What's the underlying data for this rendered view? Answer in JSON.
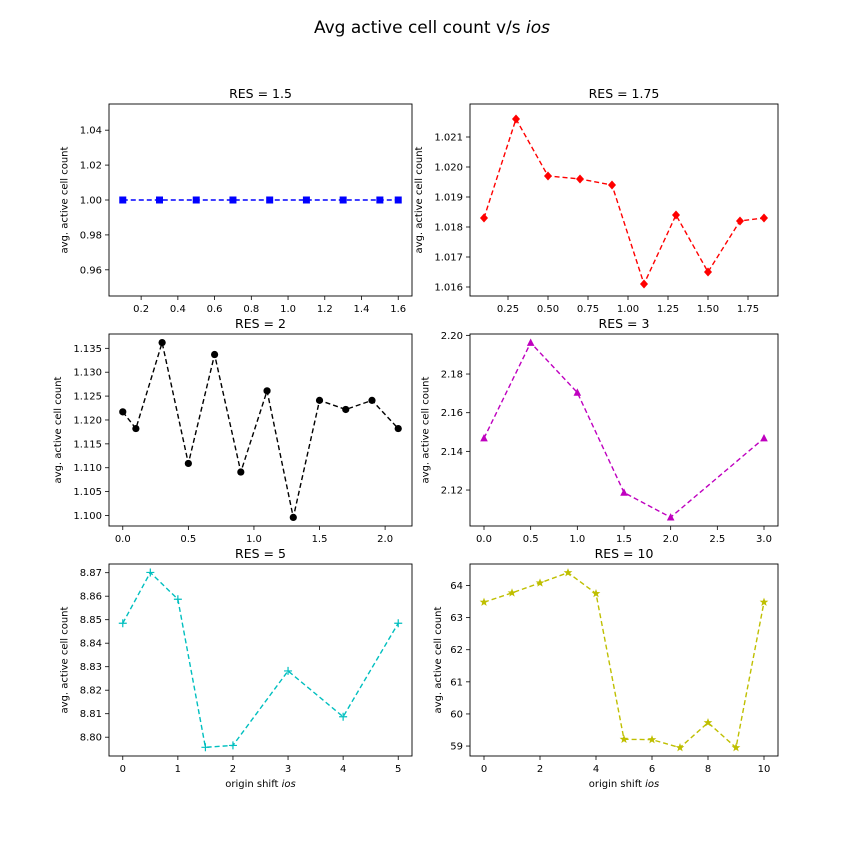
{
  "figure": {
    "title": "Avg active cell count v/s",
    "title_italic": "ios"
  },
  "chart_data": [
    {
      "type": "line",
      "title": "RES = 1.5",
      "ylabel": "avg. active cell count",
      "xlabel": "",
      "xlabel_italic": "",
      "color": "#0000ff",
      "marker": "square",
      "linestyle": "dashed",
      "x": [
        0.1,
        0.3,
        0.5,
        0.7,
        0.9,
        1.1,
        1.3,
        1.5,
        1.6
      ],
      "y": [
        1.0,
        1.0,
        1.0,
        1.0,
        1.0,
        1.0,
        1.0,
        1.0,
        1.0
      ],
      "xlim": [
        0.025,
        1.675
      ],
      "ylim": [
        0.945,
        1.055
      ],
      "xticks": [
        0.2,
        0.4,
        0.6,
        0.8,
        1.0,
        1.2,
        1.4,
        1.6
      ],
      "xtick_labels": [
        "0.2",
        "0.4",
        "0.6",
        "0.8",
        "1.0",
        "1.2",
        "1.4",
        "1.6"
      ],
      "yticks": [
        0.96,
        0.98,
        1.0,
        1.02,
        1.04
      ],
      "ytick_labels": [
        "0.96",
        "0.98",
        "1.00",
        "1.02",
        "1.04"
      ]
    },
    {
      "type": "line",
      "title": "RES = 1.75",
      "ylabel": "avg. active cell count",
      "xlabel": "",
      "xlabel_italic": "",
      "color": "#ff0000",
      "marker": "diamond",
      "linestyle": "dashed",
      "x": [
        0.1,
        0.3,
        0.5,
        0.7,
        0.9,
        1.1,
        1.3,
        1.5,
        1.7,
        1.85
      ],
      "y": [
        1.0183,
        1.0216,
        1.0197,
        1.0196,
        1.0194,
        1.0161,
        1.0184,
        1.0165,
        1.0182,
        1.0183
      ],
      "xlim": [
        0.0125,
        1.9375
      ],
      "ylim": [
        1.0157,
        1.0221
      ],
      "xticks": [
        0.25,
        0.5,
        0.75,
        1.0,
        1.25,
        1.5,
        1.75
      ],
      "xtick_labels": [
        "0.25",
        "0.50",
        "0.75",
        "1.00",
        "1.25",
        "1.50",
        "1.75"
      ],
      "yticks": [
        1.016,
        1.017,
        1.018,
        1.019,
        1.02,
        1.021
      ],
      "ytick_labels": [
        "1.016",
        "1.017",
        "1.018",
        "1.019",
        "1.020",
        "1.021"
      ]
    },
    {
      "type": "line",
      "title": "RES = 2",
      "ylabel": "avg. active cell count",
      "xlabel": "",
      "xlabel_italic": "",
      "color": "#000000",
      "marker": "circle",
      "linestyle": "dashed",
      "x": [
        0.0,
        0.1,
        0.3,
        0.5,
        0.7,
        0.9,
        1.1,
        1.3,
        1.5,
        1.7,
        1.9,
        2.1
      ],
      "y": [
        1.1217,
        1.1182,
        1.1362,
        1.1109,
        1.1337,
        1.1091,
        1.1261,
        1.0996,
        1.1241,
        1.1222,
        1.1241,
        1.1182
      ],
      "xlim": [
        -0.105,
        2.205
      ],
      "ylim": [
        1.0978,
        1.138
      ],
      "xticks": [
        0.0,
        0.5,
        1.0,
        1.5,
        2.0
      ],
      "xtick_labels": [
        "0.0",
        "0.5",
        "1.0",
        "1.5",
        "2.0"
      ],
      "yticks": [
        1.1,
        1.105,
        1.11,
        1.115,
        1.12,
        1.125,
        1.13,
        1.135
      ],
      "ytick_labels": [
        "1.100",
        "1.105",
        "1.110",
        "1.115",
        "1.120",
        "1.125",
        "1.130",
        "1.135"
      ]
    },
    {
      "type": "line",
      "title": "RES = 3",
      "ylabel": "avg. active cell count",
      "xlabel": "",
      "xlabel_italic": "",
      "color": "#bf00bf",
      "marker": "triangle",
      "linestyle": "dashed",
      "x": [
        0.0,
        0.5,
        1.0,
        1.5,
        2.0,
        3.0
      ],
      "y": [
        2.1468,
        2.1962,
        2.1704,
        2.1187,
        2.1059,
        2.1468
      ],
      "xlim": [
        -0.15,
        3.15
      ],
      "ylim": [
        2.1014,
        2.2007
      ],
      "xticks": [
        0.0,
        0.5,
        1.0,
        1.5,
        2.0,
        2.5,
        3.0
      ],
      "xtick_labels": [
        "0.0",
        "0.5",
        "1.0",
        "1.5",
        "2.0",
        "2.5",
        "3.0"
      ],
      "yticks": [
        2.12,
        2.14,
        2.16,
        2.18,
        2.2
      ],
      "ytick_labels": [
        "2.12",
        "2.14",
        "2.16",
        "2.18",
        "2.20"
      ]
    },
    {
      "type": "line",
      "title": "RES = 5",
      "ylabel": "avg. active cell count",
      "xlabel": "origin shift",
      "xlabel_italic": "ios",
      "color": "#00bfbf",
      "marker": "plus",
      "linestyle": "dashed",
      "x": [
        0.0,
        0.5,
        1.0,
        1.5,
        2.0,
        3.0,
        4.0,
        5.0
      ],
      "y": [
        8.8485,
        8.8701,
        8.8587,
        8.7957,
        8.7965,
        8.8282,
        8.8087,
        8.8485
      ],
      "xlim": [
        -0.25,
        5.25
      ],
      "ylim": [
        8.792,
        8.8737
      ],
      "xticks": [
        0,
        1,
        2,
        3,
        4,
        5
      ],
      "xtick_labels": [
        "0",
        "1",
        "2",
        "3",
        "4",
        "5"
      ],
      "yticks": [
        8.8,
        8.81,
        8.82,
        8.83,
        8.84,
        8.85,
        8.86,
        8.87
      ],
      "ytick_labels": [
        "8.80",
        "8.81",
        "8.82",
        "8.83",
        "8.84",
        "8.85",
        "8.86",
        "8.87"
      ]
    },
    {
      "type": "line",
      "title": "RES = 10",
      "ylabel": "avg. active cell count",
      "xlabel": "origin shift",
      "xlabel_italic": "ios",
      "color": "#bfbf00",
      "marker": "star",
      "linestyle": "dashed",
      "x": [
        0,
        1,
        2,
        3,
        4,
        5,
        6,
        7,
        8,
        9,
        10
      ],
      "y": [
        63.48,
        63.77,
        64.08,
        64.4,
        63.75,
        59.21,
        59.2,
        58.95,
        59.73,
        58.95,
        63.48
      ],
      "xlim": [
        -0.5,
        10.5
      ],
      "ylim": [
        58.69,
        64.67
      ],
      "xticks": [
        0,
        2,
        4,
        6,
        8,
        10
      ],
      "xtick_labels": [
        "0",
        "2",
        "4",
        "6",
        "8",
        "10"
      ],
      "yticks": [
        59,
        60,
        61,
        62,
        63,
        64
      ],
      "ytick_labels": [
        "59",
        "60",
        "61",
        "62",
        "63",
        "64"
      ]
    }
  ]
}
